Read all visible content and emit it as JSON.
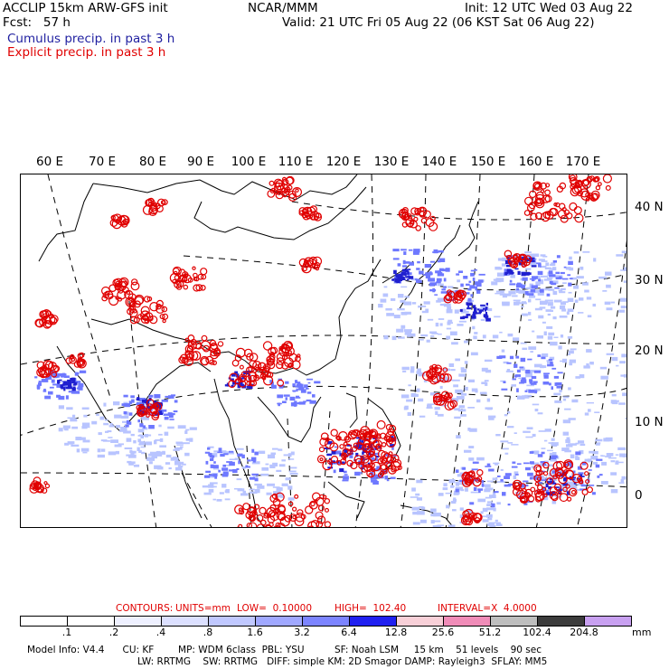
{
  "header": {
    "title": "ACCLIP 15km ARW-GFS init",
    "forecast": "Fcst:   57 h",
    "source": "NCAR/MMM",
    "init": "Init: 12 UTC Wed 03 Aug 22",
    "valid": "Valid: 21 UTC Fri 05 Aug 22 (06 KST Sat 06 Aug 22)",
    "cumulus_label": "Cumulus precip. in past 3 h",
    "explicit_label": "Explicit precip. in past 3 h"
  },
  "colors": {
    "cumulus": "#1f1fcf",
    "explicit": "#e00000",
    "cumulus_light": "#b8c4ff",
    "cumulus_mid": "#6e78ff",
    "coast": "#000000"
  },
  "map": {
    "lon_labels": [
      "60 E",
      "70 E",
      "80 E",
      "90 E",
      "100 E",
      "110 E",
      "120 E",
      "130 E",
      "140 E",
      "150 E",
      "160 E",
      "170 E"
    ],
    "lat_labels": [
      "40 N",
      "30 N",
      "20 N",
      "10 N",
      "0"
    ]
  },
  "contours": {
    "contours_label": "CONTOURS:",
    "units": "UNITS=mm",
    "low": "LOW=  0.10000",
    "high": "HIGH=  102.40",
    "interval": "INTERVAL=X  4.0000"
  },
  "colorbar": {
    "labels": [
      ".1",
      ".2",
      ".4",
      ".8",
      "1.6",
      "3.2",
      "6.4",
      "12.8",
      "25.6",
      "51.2",
      "102.4",
      "204.8"
    ],
    "units": "mm",
    "colors": [
      "#ffffff",
      "#ffffff",
      "#eef0ff",
      "#dce0ff",
      "#c0c8ff",
      "#a0a8ff",
      "#7c84ff",
      "#2020f0",
      "#f8d0d8",
      "#f08cb8",
      "#bebebe",
      "#3c3c3c",
      "#c8a0f0"
    ]
  },
  "footer": {
    "line1": "Model Info: V4.4      CU: KF        MP: WDM 6class  PBL: YSU          SF: Noah LSM     15 km    51 levels    90 sec",
    "line2": "LW: RRTMG    SW: RRTMG   DIFF: simple KM: 2D Smagor DAMP: Rayleigh3  SFLAY: MM5"
  }
}
